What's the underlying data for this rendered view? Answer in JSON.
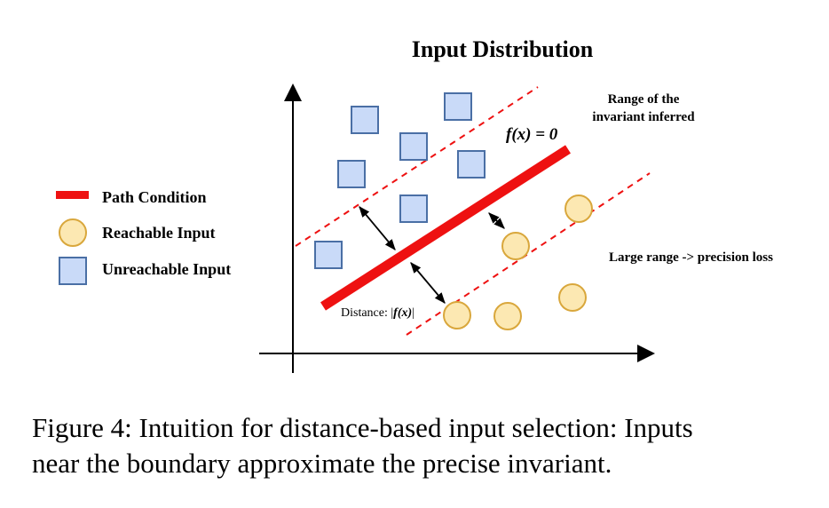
{
  "title": "Input Distribution",
  "function_label": "f(x) = 0",
  "range_note": [
    "Range of the",
    "invariant inferred"
  ],
  "precision_note": "Large range -> precision loss",
  "distance_label_prefix": "Distance: |",
  "distance_label_fx": "f(x)",
  "distance_label_suffix": "|",
  "legend": [
    {
      "label": "Path Condition",
      "icon": "red-bar-icon"
    },
    {
      "label": "Reachable Input",
      "icon": "yellow-circle-icon"
    },
    {
      "label": "Unreachable Input",
      "icon": "blue-square-icon"
    }
  ],
  "colors": {
    "path_condition": "#ee1111",
    "boundary_dashed": "#ee1111",
    "reachable_fill": "#fce8b2",
    "reachable_stroke": "#d9a73c",
    "unreachable_fill": "#c9daf8",
    "unreachable_stroke": "#4a6fa5",
    "axis": "#000000"
  },
  "caption_lines": [
    "Figure 4: Intuition for distance-based input selection: Inputs",
    "near the boundary approximate the precise invariant."
  ]
}
